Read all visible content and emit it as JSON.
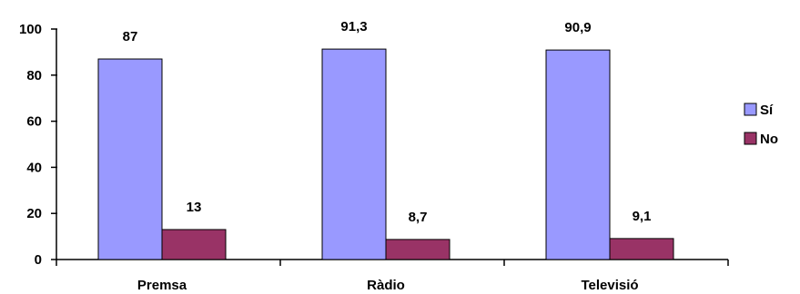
{
  "chart_data": {
    "type": "bar",
    "categories": [
      "Premsa",
      "Ràdio",
      "Televisió"
    ],
    "series": [
      {
        "name": "Sí",
        "values": [
          87,
          91.3,
          90.9
        ],
        "labels": [
          "87",
          "91,3",
          "90,9"
        ],
        "color": "#9999ff"
      },
      {
        "name": "No",
        "values": [
          13,
          8.7,
          9.1
        ],
        "labels": [
          "13",
          "8,7",
          "9,1"
        ],
        "color": "#993366"
      }
    ],
    "ylim": [
      0,
      100
    ],
    "yticks": [
      0,
      20,
      40,
      60,
      80,
      100
    ],
    "grid": false,
    "legend_position": "right"
  }
}
